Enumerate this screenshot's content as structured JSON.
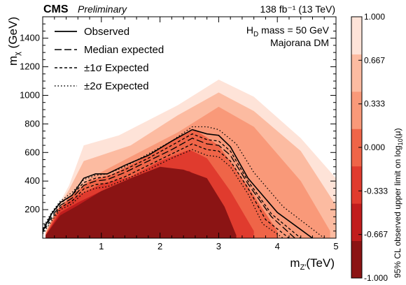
{
  "chart_data": {
    "type": "heatmap",
    "header": {
      "experiment": "CMS",
      "status": "Preliminary",
      "lumi": "138 fb⁻¹ (13 TeV)"
    },
    "annotations": {
      "line1_main": "H",
      "line1_sub": "D",
      "line1_rest": " mass = 50 GeV",
      "line2": "Majorana DM"
    },
    "xlabel": {
      "main": "m",
      "sub": "Z′",
      "unit": "(TeV)"
    },
    "ylabel": {
      "main": "m",
      "sub": "χ",
      "unit": " (GeV)"
    },
    "xlim": [
      0,
      5
    ],
    "ylim": [
      0,
      1550
    ],
    "xticks": [
      "1",
      "2",
      "3",
      "4",
      "5"
    ],
    "yticks": [
      "200",
      "400",
      "600",
      "800",
      "1000",
      "1200",
      "1400"
    ],
    "colorbar": {
      "title_main": "95% CL observed upper limit on log",
      "title_sub": "10",
      "title_rest": "(μ)",
      "range": [
        -1.0,
        1.0
      ],
      "ticks": [
        "-1.000",
        "-0.667",
        "-0.333",
        "0.000",
        "0.333",
        "0.667",
        "1.000"
      ],
      "colors": [
        "#8b1414",
        "#c11d1d",
        "#e03b2e",
        "#ef6548",
        "#f99979",
        "#fcbba1",
        "#fee3d8"
      ]
    },
    "regions": [
      {
        "level": 6,
        "upper": [
          [
            0.05,
            50
          ],
          [
            0.2,
            180
          ],
          [
            0.45,
            370
          ],
          [
            0.7,
            650
          ],
          [
            1.3,
            720
          ],
          [
            2.3,
            930
          ],
          [
            3.0,
            1110
          ],
          [
            3.6,
            990
          ],
          [
            4.4,
            700
          ],
          [
            5.0,
            420
          ]
        ]
      },
      {
        "level": 5,
        "upper": [
          [
            0.05,
            50
          ],
          [
            0.2,
            170
          ],
          [
            0.45,
            340
          ],
          [
            0.7,
            540
          ],
          [
            1.5,
            650
          ],
          [
            2.3,
            860
          ],
          [
            3.0,
            1020
          ],
          [
            3.6,
            890
          ],
          [
            4.4,
            610
          ],
          [
            5.0,
            230
          ]
        ]
      },
      {
        "level": 4,
        "upper": [
          [
            0.05,
            30
          ],
          [
            0.2,
            150
          ],
          [
            0.45,
            290
          ],
          [
            0.8,
            420
          ],
          [
            1.5,
            570
          ],
          [
            2.3,
            740
          ],
          [
            3.0,
            920
          ],
          [
            3.6,
            780
          ],
          [
            4.4,
            400
          ],
          [
            4.9,
            50
          ]
        ]
      },
      {
        "level": 3,
        "upper": [
          [
            0.05,
            30
          ],
          [
            0.25,
            200
          ],
          [
            0.5,
            300
          ],
          [
            0.8,
            400
          ],
          [
            1.2,
            450
          ],
          [
            1.8,
            580
          ],
          [
            2.4,
            730
          ],
          [
            2.6,
            760
          ],
          [
            3.0,
            650
          ],
          [
            3.5,
            360
          ],
          [
            4.0,
            50
          ]
        ]
      },
      {
        "level": 2,
        "upper": [
          [
            0.05,
            20
          ],
          [
            0.3,
            210
          ],
          [
            0.6,
            300
          ],
          [
            1.0,
            380
          ],
          [
            1.5,
            430
          ],
          [
            2.0,
            540
          ],
          [
            2.5,
            620
          ],
          [
            2.8,
            560
          ],
          [
            3.2,
            330
          ],
          [
            3.6,
            50
          ]
        ]
      },
      {
        "level": 1,
        "upper": [
          [
            0.05,
            20
          ],
          [
            0.3,
            180
          ],
          [
            0.6,
            250
          ],
          [
            1.0,
            330
          ],
          [
            1.5,
            400
          ],
          [
            2.0,
            480
          ],
          [
            2.5,
            470
          ],
          [
            2.8,
            380
          ],
          [
            3.1,
            180
          ],
          [
            3.3,
            20
          ]
        ]
      },
      {
        "level": 0,
        "upper": [
          [
            0.05,
            20
          ],
          [
            0.3,
            160
          ],
          [
            0.6,
            230
          ],
          [
            1.0,
            330
          ],
          [
            1.5,
            420
          ],
          [
            2.0,
            500
          ],
          [
            2.4,
            480
          ],
          [
            2.8,
            420
          ],
          [
            3.1,
            220
          ],
          [
            3.3,
            20
          ]
        ]
      }
    ],
    "contours": [
      {
        "name": "Observed",
        "style": "solid",
        "points": [
          [
            0.0,
            50
          ],
          [
            0.15,
            170
          ],
          [
            0.3,
            250
          ],
          [
            0.5,
            300
          ],
          [
            0.7,
            420
          ],
          [
            0.9,
            450
          ],
          [
            1.1,
            450
          ],
          [
            1.4,
            510
          ],
          [
            1.8,
            580
          ],
          [
            2.2,
            680
          ],
          [
            2.55,
            760
          ],
          [
            2.8,
            730
          ],
          [
            3.0,
            720
          ],
          [
            3.2,
            640
          ],
          [
            3.5,
            420
          ],
          [
            4.0,
            180
          ],
          [
            4.6,
            0
          ]
        ]
      },
      {
        "name": "Median expected",
        "style": "longdash",
        "points": [
          [
            0.0,
            50
          ],
          [
            0.15,
            150
          ],
          [
            0.3,
            230
          ],
          [
            0.5,
            280
          ],
          [
            0.7,
            370
          ],
          [
            0.9,
            400
          ],
          [
            1.1,
            410
          ],
          [
            1.4,
            460
          ],
          [
            1.8,
            540
          ],
          [
            2.2,
            620
          ],
          [
            2.55,
            700
          ],
          [
            2.8,
            660
          ],
          [
            3.0,
            650
          ],
          [
            3.2,
            580
          ],
          [
            3.5,
            380
          ],
          [
            3.9,
            150
          ],
          [
            4.3,
            0
          ]
        ]
      },
      {
        "name": "±1σ Expected",
        "style": "dashed",
        "points": [
          [
            0.0,
            60
          ],
          [
            0.15,
            165
          ],
          [
            0.3,
            245
          ],
          [
            0.5,
            300
          ],
          [
            0.7,
            390
          ],
          [
            0.9,
            420
          ],
          [
            1.1,
            430
          ],
          [
            1.4,
            480
          ],
          [
            1.8,
            560
          ],
          [
            2.2,
            650
          ],
          [
            2.55,
            730
          ],
          [
            2.8,
            690
          ],
          [
            3.0,
            680
          ],
          [
            3.2,
            610
          ],
          [
            3.5,
            400
          ],
          [
            3.9,
            170
          ],
          [
            4.4,
            0
          ]
        ]
      },
      {
        "name": "±1σ Expected",
        "style": "dashed",
        "points": [
          [
            0.0,
            40
          ],
          [
            0.15,
            135
          ],
          [
            0.3,
            215
          ],
          [
            0.5,
            260
          ],
          [
            0.7,
            345
          ],
          [
            0.9,
            375
          ],
          [
            1.1,
            385
          ],
          [
            1.4,
            430
          ],
          [
            1.8,
            510
          ],
          [
            2.2,
            590
          ],
          [
            2.55,
            660
          ],
          [
            2.8,
            620
          ],
          [
            3.0,
            610
          ],
          [
            3.2,
            540
          ],
          [
            3.5,
            350
          ],
          [
            3.8,
            130
          ],
          [
            4.2,
            0
          ]
        ]
      },
      {
        "name": "±2σ Expected",
        "style": "dotted",
        "points": [
          [
            0.0,
            70
          ],
          [
            0.15,
            180
          ],
          [
            0.3,
            260
          ],
          [
            0.5,
            320
          ],
          [
            0.7,
            410
          ],
          [
            0.9,
            440
          ],
          [
            1.1,
            450
          ],
          [
            1.4,
            500
          ],
          [
            1.8,
            590
          ],
          [
            2.2,
            680
          ],
          [
            2.55,
            780
          ],
          [
            2.8,
            780
          ],
          [
            3.0,
            760
          ],
          [
            3.3,
            660
          ],
          [
            3.6,
            460
          ],
          [
            4.1,
            220
          ],
          [
            4.8,
            0
          ]
        ]
      },
      {
        "name": "±2σ Expected",
        "style": "dotted",
        "points": [
          [
            0.0,
            30
          ],
          [
            0.15,
            120
          ],
          [
            0.3,
            200
          ],
          [
            0.5,
            240
          ],
          [
            0.7,
            320
          ],
          [
            0.9,
            350
          ],
          [
            1.1,
            360
          ],
          [
            1.4,
            410
          ],
          [
            1.8,
            480
          ],
          [
            2.2,
            560
          ],
          [
            2.55,
            620
          ],
          [
            2.8,
            580
          ],
          [
            3.0,
            570
          ],
          [
            3.2,
            500
          ],
          [
            3.5,
            310
          ],
          [
            3.75,
            100
          ],
          [
            4.1,
            0
          ]
        ]
      }
    ],
    "legend": {
      "placement": "top-left",
      "entries": [
        {
          "label": "Observed",
          "style": "solid"
        },
        {
          "label": "Median expected",
          "style": "longdash"
        },
        {
          "label": "±1σ Expected",
          "style": "dashed"
        },
        {
          "label": "±2σ Expected",
          "style": "dotted"
        }
      ]
    }
  }
}
